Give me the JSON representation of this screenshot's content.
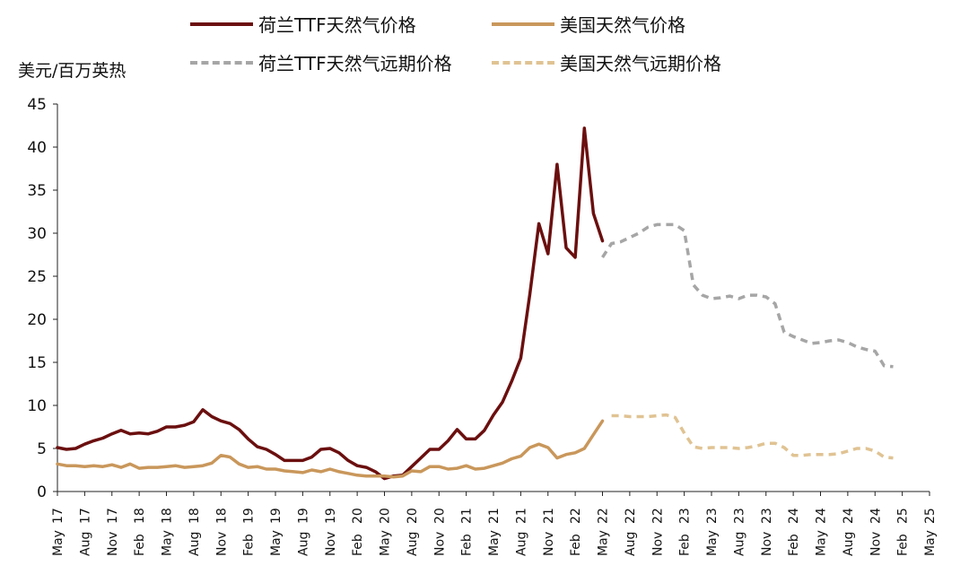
{
  "chart_data": {
    "type": "line",
    "ylabel": "美元/百万英热",
    "ylim": [
      0,
      45
    ],
    "yticks": [
      "0",
      "5",
      "10",
      "15",
      "20",
      "25",
      "30",
      "35",
      "40",
      "45"
    ],
    "x_labels": [
      [
        "May",
        "17"
      ],
      [
        "Aug",
        "17"
      ],
      [
        "Nov",
        "17"
      ],
      [
        "Feb",
        "18"
      ],
      [
        "May",
        "18"
      ],
      [
        "Aug",
        "18"
      ],
      [
        "Nov",
        "18"
      ],
      [
        "Feb",
        "19"
      ],
      [
        "May",
        "19"
      ],
      [
        "Aug",
        "19"
      ],
      [
        "Nov",
        "19"
      ],
      [
        "Feb",
        "20"
      ],
      [
        "May",
        "20"
      ],
      [
        "Aug",
        "20"
      ],
      [
        "Nov",
        "20"
      ],
      [
        "Feb",
        "21"
      ],
      [
        "May",
        "21"
      ],
      [
        "Aug",
        "21"
      ],
      [
        "Nov",
        "21"
      ],
      [
        "Feb",
        "22"
      ],
      [
        "May",
        "22"
      ],
      [
        "Aug",
        "22"
      ],
      [
        "Nov",
        "22"
      ],
      [
        "Feb",
        "23"
      ],
      [
        "May",
        "23"
      ],
      [
        "Aug",
        "23"
      ],
      [
        "Nov",
        "23"
      ],
      [
        "Feb",
        "24"
      ],
      [
        "May",
        "24"
      ],
      [
        "Aug",
        "24"
      ],
      [
        "Nov",
        "24"
      ],
      [
        "Feb",
        "25"
      ],
      [
        "May",
        "25"
      ]
    ],
    "x_start": "2017-05",
    "x_end": "2025-05",
    "legend_position": "top",
    "grid": false,
    "series": [
      {
        "name": "荷兰TTF天然气价格",
        "color": "#6b0f0f",
        "dash": "solid",
        "points": [
          [
            "2017-05",
            5.1
          ],
          [
            "2017-06",
            4.9
          ],
          [
            "2017-07",
            5.0
          ],
          [
            "2017-08",
            5.5
          ],
          [
            "2017-09",
            5.9
          ],
          [
            "2017-10",
            6.2
          ],
          [
            "2017-11",
            6.7
          ],
          [
            "2017-12",
            7.1
          ],
          [
            "2018-01",
            6.7
          ],
          [
            "2018-02",
            6.8
          ],
          [
            "2018-03",
            6.7
          ],
          [
            "2018-04",
            7.0
          ],
          [
            "2018-05",
            7.5
          ],
          [
            "2018-06",
            7.5
          ],
          [
            "2018-07",
            7.7
          ],
          [
            "2018-08",
            8.1
          ],
          [
            "2018-09",
            9.5
          ],
          [
            "2018-10",
            8.7
          ],
          [
            "2018-11",
            8.2
          ],
          [
            "2018-12",
            7.9
          ],
          [
            "2019-01",
            7.2
          ],
          [
            "2019-02",
            6.1
          ],
          [
            "2019-03",
            5.2
          ],
          [
            "2019-04",
            4.9
          ],
          [
            "2019-05",
            4.3
          ],
          [
            "2019-06",
            3.6
          ],
          [
            "2019-07",
            3.6
          ],
          [
            "2019-08",
            3.6
          ],
          [
            "2019-09",
            4.0
          ],
          [
            "2019-10",
            4.9
          ],
          [
            "2019-11",
            5.0
          ],
          [
            "2019-12",
            4.5
          ],
          [
            "2020-01",
            3.6
          ],
          [
            "2020-02",
            3.0
          ],
          [
            "2020-03",
            2.8
          ],
          [
            "2020-04",
            2.3
          ],
          [
            "2020-05",
            1.5
          ],
          [
            "2020-06",
            1.8
          ],
          [
            "2020-07",
            1.9
          ],
          [
            "2020-08",
            2.9
          ],
          [
            "2020-09",
            3.9
          ],
          [
            "2020-10",
            4.9
          ],
          [
            "2020-11",
            4.9
          ],
          [
            "2020-12",
            5.9
          ],
          [
            "2021-01",
            7.2
          ],
          [
            "2021-02",
            6.1
          ],
          [
            "2021-03",
            6.1
          ],
          [
            "2021-04",
            7.1
          ],
          [
            "2021-05",
            8.9
          ],
          [
            "2021-06",
            10.4
          ],
          [
            "2021-07",
            12.8
          ],
          [
            "2021-08",
            15.5
          ],
          [
            "2021-09",
            22.9
          ],
          [
            "2021-10",
            31.1
          ],
          [
            "2021-11",
            27.6
          ],
          [
            "2021-12",
            38.0
          ],
          [
            "2022-01",
            28.3
          ],
          [
            "2022-02",
            27.2
          ],
          [
            "2022-03",
            42.2
          ],
          [
            "2022-04",
            32.3
          ],
          [
            "2022-05",
            29.1
          ]
        ]
      },
      {
        "name": "美国天然气价格",
        "color": "#c9975b",
        "dash": "solid",
        "points": [
          [
            "2017-05",
            3.2
          ],
          [
            "2017-06",
            3.0
          ],
          [
            "2017-07",
            3.0
          ],
          [
            "2017-08",
            2.9
          ],
          [
            "2017-09",
            3.0
          ],
          [
            "2017-10",
            2.9
          ],
          [
            "2017-11",
            3.1
          ],
          [
            "2017-12",
            2.8
          ],
          [
            "2018-01",
            3.2
          ],
          [
            "2018-02",
            2.7
          ],
          [
            "2018-03",
            2.8
          ],
          [
            "2018-04",
            2.8
          ],
          [
            "2018-05",
            2.9
          ],
          [
            "2018-06",
            3.0
          ],
          [
            "2018-07",
            2.8
          ],
          [
            "2018-08",
            2.9
          ],
          [
            "2018-09",
            3.0
          ],
          [
            "2018-10",
            3.3
          ],
          [
            "2018-11",
            4.2
          ],
          [
            "2018-12",
            4.0
          ],
          [
            "2019-01",
            3.2
          ],
          [
            "2019-02",
            2.8
          ],
          [
            "2019-03",
            2.9
          ],
          [
            "2019-04",
            2.6
          ],
          [
            "2019-05",
            2.6
          ],
          [
            "2019-06",
            2.4
          ],
          [
            "2019-07",
            2.3
          ],
          [
            "2019-08",
            2.2
          ],
          [
            "2019-09",
            2.5
          ],
          [
            "2019-10",
            2.3
          ],
          [
            "2019-11",
            2.6
          ],
          [
            "2019-12",
            2.3
          ],
          [
            "2020-01",
            2.1
          ],
          [
            "2020-02",
            1.9
          ],
          [
            "2020-03",
            1.8
          ],
          [
            "2020-04",
            1.8
          ],
          [
            "2020-05",
            1.8
          ],
          [
            "2020-06",
            1.7
          ],
          [
            "2020-07",
            1.8
          ],
          [
            "2020-08",
            2.4
          ],
          [
            "2020-09",
            2.3
          ],
          [
            "2020-10",
            2.9
          ],
          [
            "2020-11",
            2.9
          ],
          [
            "2020-12",
            2.6
          ],
          [
            "2021-01",
            2.7
          ],
          [
            "2021-02",
            3.0
          ],
          [
            "2021-03",
            2.6
          ],
          [
            "2021-04",
            2.7
          ],
          [
            "2021-05",
            3.0
          ],
          [
            "2021-06",
            3.3
          ],
          [
            "2021-07",
            3.8
          ],
          [
            "2021-08",
            4.1
          ],
          [
            "2021-09",
            5.1
          ],
          [
            "2021-10",
            5.5
          ],
          [
            "2021-11",
            5.1
          ],
          [
            "2021-12",
            3.9
          ],
          [
            "2022-01",
            4.3
          ],
          [
            "2022-02",
            4.5
          ],
          [
            "2022-03",
            5.0
          ],
          [
            "2022-04",
            6.6
          ],
          [
            "2022-05",
            8.2
          ]
        ]
      },
      {
        "name": "荷兰TTF天然气远期价格",
        "color": "#a6a6a6",
        "dash": "dashed",
        "points": [
          [
            "2022-05",
            27.2
          ],
          [
            "2022-06",
            28.8
          ],
          [
            "2022-07",
            29.0
          ],
          [
            "2022-08",
            29.5
          ],
          [
            "2022-09",
            30.0
          ],
          [
            "2022-10",
            30.7
          ],
          [
            "2022-11",
            31.0
          ],
          [
            "2022-12",
            31.0
          ],
          [
            "2023-01",
            31.0
          ],
          [
            "2023-02",
            30.3
          ],
          [
            "2023-03",
            24.0
          ],
          [
            "2023-04",
            22.8
          ],
          [
            "2023-05",
            22.4
          ],
          [
            "2023-06",
            22.5
          ],
          [
            "2023-07",
            22.7
          ],
          [
            "2023-08",
            22.4
          ],
          [
            "2023-09",
            22.8
          ],
          [
            "2023-10",
            22.8
          ],
          [
            "2023-11",
            22.6
          ],
          [
            "2023-12",
            21.8
          ],
          [
            "2024-01",
            18.5
          ],
          [
            "2024-02",
            18.0
          ],
          [
            "2024-03",
            17.6
          ],
          [
            "2024-04",
            17.2
          ],
          [
            "2024-05",
            17.3
          ],
          [
            "2024-06",
            17.5
          ],
          [
            "2024-07",
            17.6
          ],
          [
            "2024-08",
            17.3
          ],
          [
            "2024-09",
            16.8
          ],
          [
            "2024-10",
            16.5
          ],
          [
            "2024-11",
            16.3
          ],
          [
            "2024-12",
            14.6
          ],
          [
            "2025-01",
            14.5
          ]
        ]
      },
      {
        "name": "美国天然气远期价格",
        "color": "#e0c393",
        "dash": "dashed",
        "points": [
          [
            "2022-06",
            8.8
          ],
          [
            "2022-07",
            8.8
          ],
          [
            "2022-08",
            8.7
          ],
          [
            "2022-09",
            8.7
          ],
          [
            "2022-10",
            8.7
          ],
          [
            "2022-11",
            8.8
          ],
          [
            "2022-12",
            8.9
          ],
          [
            "2023-01",
            8.6
          ],
          [
            "2023-02",
            6.8
          ],
          [
            "2023-03",
            5.2
          ],
          [
            "2023-04",
            5.0
          ],
          [
            "2023-05",
            5.1
          ],
          [
            "2023-06",
            5.1
          ],
          [
            "2023-07",
            5.1
          ],
          [
            "2023-08",
            5.0
          ],
          [
            "2023-09",
            5.1
          ],
          [
            "2023-10",
            5.3
          ],
          [
            "2023-11",
            5.6
          ],
          [
            "2023-12",
            5.6
          ],
          [
            "2024-01",
            5.1
          ],
          [
            "2024-02",
            4.2
          ],
          [
            "2024-03",
            4.2
          ],
          [
            "2024-04",
            4.3
          ],
          [
            "2024-05",
            4.3
          ],
          [
            "2024-06",
            4.3
          ],
          [
            "2024-07",
            4.4
          ],
          [
            "2024-08",
            4.7
          ],
          [
            "2024-09",
            5.0
          ],
          [
            "2024-10",
            5.0
          ],
          [
            "2024-11",
            4.7
          ],
          [
            "2024-12",
            4.0
          ],
          [
            "2025-01",
            3.9
          ]
        ]
      }
    ]
  },
  "legend": {
    "items": [
      {
        "label": "荷兰TTF天然气价格",
        "color": "#6b0f0f",
        "dash": "solid"
      },
      {
        "label": "美国天然气价格",
        "color": "#c9975b",
        "dash": "solid"
      },
      {
        "label": "荷兰TTF天然气远期价格",
        "color": "#a6a6a6",
        "dash": "dashed"
      },
      {
        "label": "美国天然气远期价格",
        "color": "#e0c393",
        "dash": "dashed"
      }
    ]
  }
}
